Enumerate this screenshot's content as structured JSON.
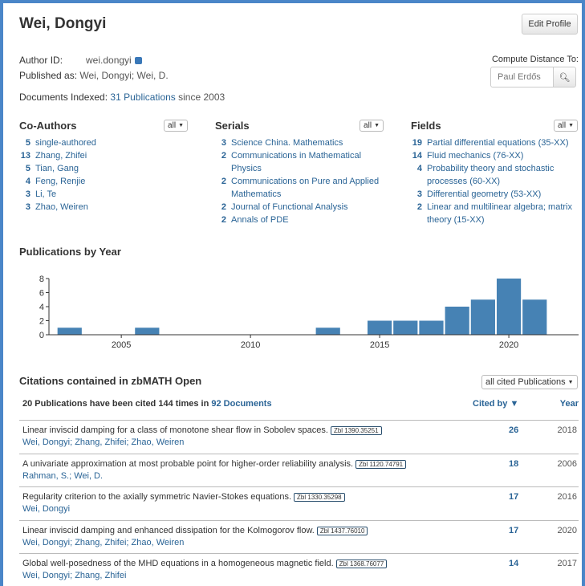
{
  "header": {
    "name": "Wei, Dongyi",
    "edit_profile": "Edit Profile"
  },
  "info": {
    "author_id_label": "Author ID:",
    "author_id": "wei.dongyi",
    "published_as_label": "Published as:",
    "published_as": "Wei, Dongyi; Wei, D.",
    "documents_label": "Documents Indexed:",
    "documents_link": "31 Publications",
    "documents_since": "since 2003"
  },
  "distance": {
    "label": "Compute Distance To:",
    "placeholder": "Paul Erdős"
  },
  "coauthors": {
    "title": "Co-Authors",
    "filter": "all",
    "items": [
      {
        "n": "5",
        "t": "single-authored"
      },
      {
        "n": "13",
        "t": "Zhang, Zhifei"
      },
      {
        "n": "5",
        "t": "Tian, Gang"
      },
      {
        "n": "4",
        "t": "Feng, Renjie"
      },
      {
        "n": "3",
        "t": "Li, Te"
      },
      {
        "n": "3",
        "t": "Zhao, Weiren"
      }
    ]
  },
  "serials": {
    "title": "Serials",
    "filter": "all",
    "items": [
      {
        "n": "3",
        "t": "Science China. Mathematics"
      },
      {
        "n": "2",
        "t": "Communications in Mathematical Physics"
      },
      {
        "n": "2",
        "t": "Communications on Pure and Applied Mathematics"
      },
      {
        "n": "2",
        "t": "Journal of Functional Analysis"
      },
      {
        "n": "2",
        "t": "Annals of PDE"
      }
    ]
  },
  "fields": {
    "title": "Fields",
    "filter": "all",
    "items": [
      {
        "n": "19",
        "t": "Partial differential equations (35-XX)"
      },
      {
        "n": "14",
        "t": "Fluid mechanics (76-XX)"
      },
      {
        "n": "4",
        "t": "Probability theory and stochastic processes (60-XX)"
      },
      {
        "n": "3",
        "t": "Differential geometry (53-XX)"
      },
      {
        "n": "2",
        "t": "Linear and multilinear algebra; matrix theory (15-XX)"
      }
    ]
  },
  "chart_data": {
    "type": "bar",
    "title": "Publications by Year",
    "x": [
      2003,
      2006,
      2013,
      2015,
      2016,
      2017,
      2018,
      2019,
      2020,
      2021
    ],
    "values": [
      1,
      1,
      1,
      2,
      2,
      2,
      4,
      5,
      8,
      5
    ],
    "xlim": [
      2002.2,
      2022.7
    ],
    "ylim": [
      0,
      8
    ],
    "yticks": [
      "0",
      "2",
      "4",
      "6",
      "8"
    ],
    "xticks": [
      "2005",
      "2010",
      "2015",
      "2020"
    ],
    "bar_color": "#4682b4",
    "grid": false
  },
  "citations": {
    "title": "Citations contained in zbMATH Open",
    "filter": "all cited Publications",
    "summary_pre": "20 Publications have been cited 144 times in",
    "summary_link": "92 Documents",
    "col_cited": "Cited by ▼",
    "col_year": "Year",
    "rows": [
      {
        "title": "Linear inviscid damping for a class of monotone shear flow in Sobolev spaces.",
        "zbl": "Zbl 1390.35251",
        "authors": "Wei, Dongyi; Zhang, Zhifei; Zhao, Weiren",
        "cited": "26",
        "year": "2018"
      },
      {
        "title": "A univariate approximation at most probable point for higher-order reliability analysis.",
        "zbl": "Zbl 1120.74791",
        "authors": "Rahman, S.; Wei, D.",
        "cited": "18",
        "year": "2006"
      },
      {
        "title": "Regularity criterion to the axially symmetric Navier-Stokes equations.",
        "zbl": "Zbl 1330.35298",
        "authors": "Wei, Dongyi",
        "cited": "17",
        "year": "2016"
      },
      {
        "title": "Linear inviscid damping and enhanced dissipation for the Kolmogorov flow.",
        "zbl": "Zbl 1437.76010",
        "authors": "Wei, Dongyi; Zhang, Zhifei; Zhao, Weiren",
        "cited": "17",
        "year": "2020"
      },
      {
        "title": "Global well-posedness of the MHD equations in a homogeneous magnetic field.",
        "zbl": "Zbl 1368.76077",
        "authors": "Wei, Dongyi; Zhang, Zhifei",
        "cited": "14",
        "year": "2017"
      }
    ]
  }
}
